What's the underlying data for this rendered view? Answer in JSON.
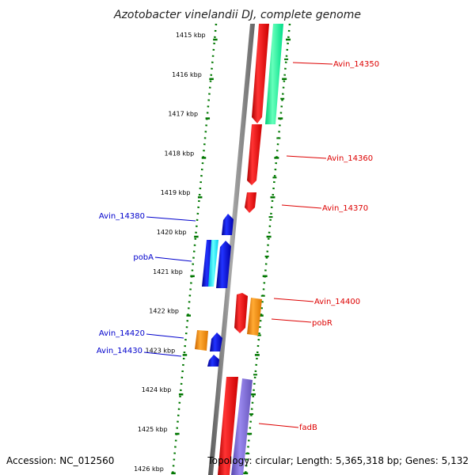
{
  "title": "Azotobacter vinelandii DJ, complete genome",
  "footer": {
    "accession": "Accession: NC_012560",
    "topology": "Topology: circular; Length: 5,365,318 bp; Genes: 5,132"
  },
  "ruler_ticks": [
    "1415 kbp",
    "1416 kbp",
    "1417 kbp",
    "1418 kbp",
    "1419 kbp",
    "1420 kbp",
    "1421 kbp",
    "1422 kbp",
    "1423 kbp",
    "1424 kbp",
    "1425 kbp",
    "1426 kbp"
  ],
  "gene_labels_right": [
    {
      "text": "Avin_14350",
      "color": "#dd0000"
    },
    {
      "text": "Avin_14360",
      "color": "#dd0000"
    },
    {
      "text": "Avin_14370",
      "color": "#dd0000"
    },
    {
      "text": "Avin_14400",
      "color": "#dd0000"
    },
    {
      "text": "pobR",
      "color": "#dd0000"
    },
    {
      "text": "fadB",
      "color": "#dd0000"
    }
  ],
  "gene_labels_left": [
    {
      "text": "Avin_14380",
      "color": "#0000cc"
    },
    {
      "text": "pobA",
      "color": "#0000cc"
    },
    {
      "text": "Avin_14420",
      "color": "#0000cc"
    },
    {
      "text": "Avin_14430",
      "color": "#0000cc"
    }
  ],
  "colors": {
    "forward_strand": "#ee0000",
    "reverse_strand": "#0000ee",
    "rna": "#00ee99",
    "cyan": "#00ffff",
    "orange": "#ff9900",
    "purple": "#7766cc",
    "axis": "#808080",
    "ruler": "#007700"
  }
}
